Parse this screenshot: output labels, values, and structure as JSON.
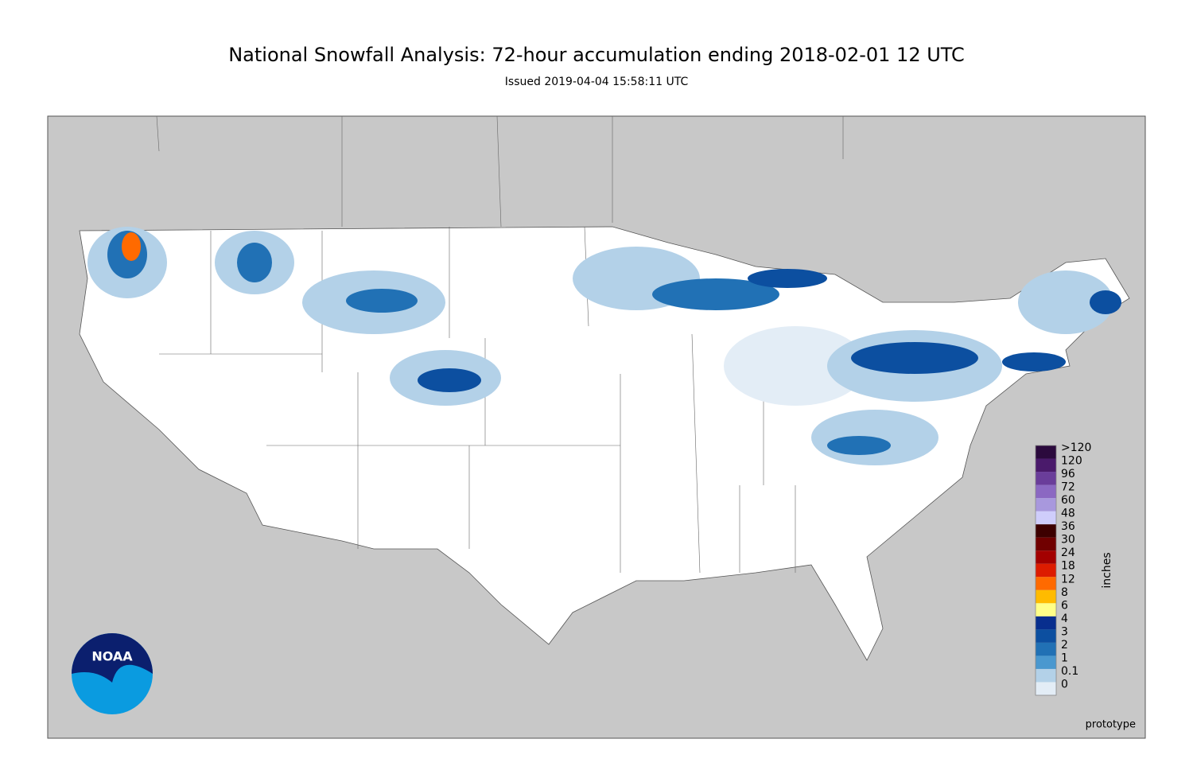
{
  "header": {
    "title": "National Snowfall Analysis: 72-hour accumulation ending 2018-02-01 12 UTC",
    "subtitle": "Issued 2019-04-04 15:58:11 UTC"
  },
  "map": {
    "logo_text": "NOAA",
    "footnote": "prototype"
  },
  "legend": {
    "unit_label": "inches",
    "levels": [
      {
        "label": ">120",
        "color": "#2b0a3d"
      },
      {
        "label": "120",
        "color": "#4a1a6b"
      },
      {
        "label": "96",
        "color": "#6a3d9a"
      },
      {
        "label": "72",
        "color": "#8b68c2"
      },
      {
        "label": "60",
        "color": "#a898dd"
      },
      {
        "label": "48",
        "color": "#cfcdfb"
      },
      {
        "label": "36",
        "color": "#3d0000"
      },
      {
        "label": "30",
        "color": "#700000"
      },
      {
        "label": "24",
        "color": "#a30000"
      },
      {
        "label": "18",
        "color": "#dd1c00"
      },
      {
        "label": "12",
        "color": "#ff6a00"
      },
      {
        "label": "8",
        "color": "#ffbb00"
      },
      {
        "label": "6",
        "color": "#ffff88"
      },
      {
        "label": "4",
        "color": "#082e8e"
      },
      {
        "label": "3",
        "color": "#0c4fa0"
      },
      {
        "label": "2",
        "color": "#2171b5"
      },
      {
        "label": "1",
        "color": "#4a98cf"
      },
      {
        "label": "0.1",
        "color": "#b3d1e8"
      },
      {
        "label": "0",
        "color": "#e3edf6"
      }
    ]
  }
}
